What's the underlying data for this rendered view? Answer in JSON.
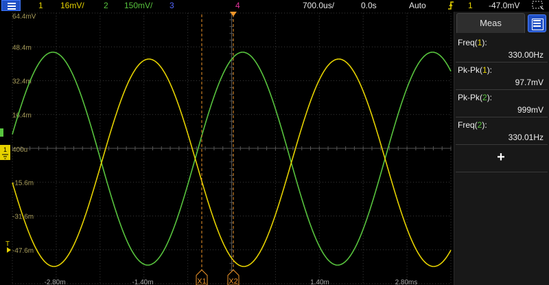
{
  "topbar": {
    "ch1_num": "1",
    "ch1_scale": "16mV/",
    "ch2_num": "2",
    "ch2_scale": "150mV/",
    "ch3_num": "3",
    "ch4_num": "4",
    "timebase": "700.0us/",
    "delay": "0.0s",
    "trigger_mode": "Auto",
    "trigger_channel": "1",
    "trigger_level": "-47.0mV"
  },
  "scope": {
    "y_labels": [
      "64.4mV",
      "48.4m",
      "32.4m",
      "16.4m",
      "400u",
      "-15.6m",
      "-31.6m",
      "-47.6m"
    ],
    "x_labels": [
      "-2.80m",
      "-1.40m",
      "1.40m",
      "2.80ms"
    ],
    "cursor_labels": [
      "X1",
      "X2"
    ],
    "trigger_marker": "T",
    "ground_marker": "1"
  },
  "colors": {
    "ch1": "#e6d200",
    "ch2": "#58c43e",
    "cursor": "#f0962a",
    "grid": "#3a3a3a"
  },
  "panel": {
    "tab_label": "Meas",
    "measurements": [
      {
        "label_main": "Freq(",
        "label_ch": "1",
        "label_end": "):",
        "value": "330.00Hz",
        "channel": 1
      },
      {
        "label_main": "Pk-Pk(",
        "label_ch": "1",
        "label_end": "):",
        "value": "97.7mV",
        "channel": 1
      },
      {
        "label_main": "Pk-Pk(",
        "label_ch": "2",
        "label_end": "):",
        "value": "999mV",
        "channel": 2
      },
      {
        "label_main": "Freq(",
        "label_ch": "2",
        "label_end": "):",
        "value": "330.01Hz",
        "channel": 2
      }
    ],
    "add_label": "+"
  },
  "waveforms": {
    "frequency_hz": 330,
    "ch1_pk_pk_mv": 97.7,
    "ch2_pk_pk_mv": 999
  }
}
